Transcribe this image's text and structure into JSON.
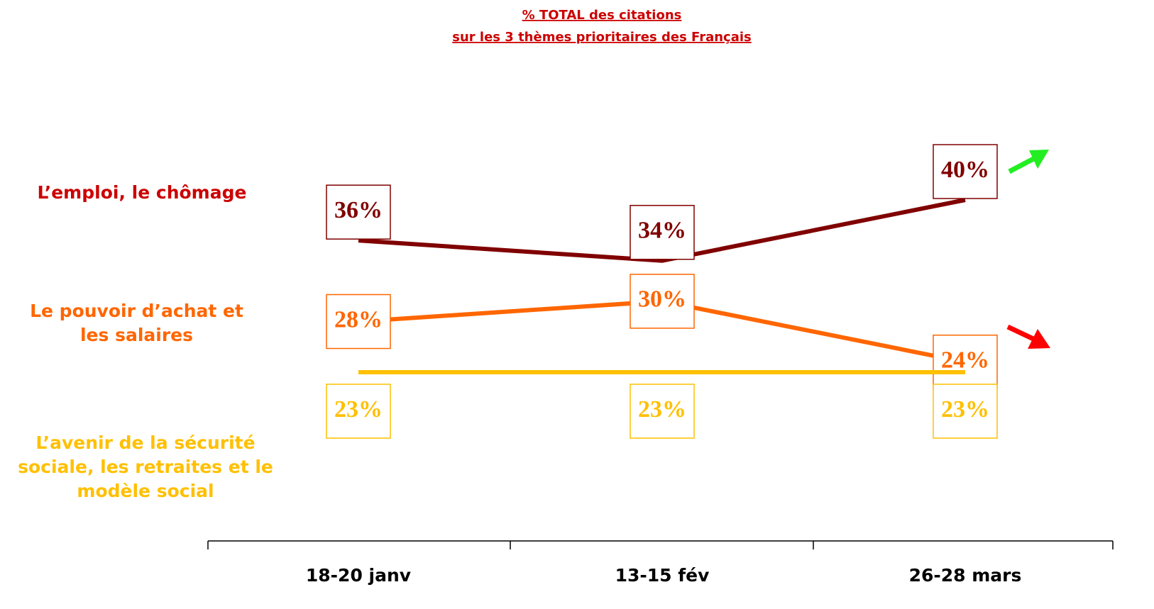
{
  "chart_data": {
    "type": "line",
    "title": "% TOTAL des citations",
    "subtitle": "sur les 3 thèmes prioritaires des Français",
    "categories": [
      "18-20 janv",
      "13-15 fév",
      "26-28 mars"
    ],
    "series": [
      {
        "name": "L’emploi, le chômage",
        "color": "#800000",
        "label_color": "#cc0000",
        "values": [
          36,
          34,
          40
        ],
        "value_labels": [
          "36%",
          "34%",
          "40%"
        ]
      },
      {
        "name": "Le pouvoir d’achat et les salaires",
        "color": "#ff6600",
        "label_color": "#ff6600",
        "values": [
          28,
          30,
          24
        ],
        "value_labels": [
          "28%",
          "30%",
          "24%"
        ]
      },
      {
        "name": "L’avenir de la sécurité sociale, les retraites et le modèle social",
        "color": "#ffc000",
        "label_color": "#ffc000",
        "values": [
          23,
          23,
          23
        ],
        "value_labels": [
          "23%",
          "23%",
          "23%"
        ]
      }
    ]
  }
}
